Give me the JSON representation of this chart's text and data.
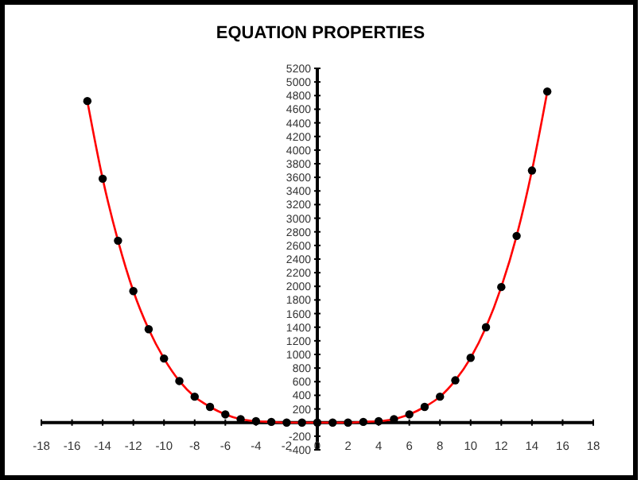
{
  "chart_data": {
    "type": "line",
    "title": "EQUATION PROPERTIES",
    "x": [
      -15,
      -14,
      -13,
      -12,
      -11,
      -10,
      -9,
      -8,
      -7,
      -6,
      -5,
      -4,
      -3,
      -2,
      -1,
      0,
      1,
      2,
      3,
      4,
      5,
      6,
      7,
      8,
      9,
      10,
      11,
      12,
      13,
      14,
      15
    ],
    "series": [
      {
        "color": "#ff0000",
        "values": [
          4720,
          3580,
          2670,
          1930,
          1370,
          940,
          610,
          380,
          230,
          120,
          50,
          20,
          10,
          0,
          0,
          0,
          0,
          0,
          10,
          20,
          50,
          120,
          230,
          380,
          620,
          950,
          1400,
          1990,
          2740,
          3700,
          4860
        ]
      }
    ],
    "xlim": [
      -18,
      18
    ],
    "xticks": [
      -18,
      -16,
      -14,
      -12,
      -10,
      -8,
      -6,
      -4,
      -2,
      0,
      2,
      4,
      6,
      8,
      10,
      12,
      14,
      16,
      18
    ],
    "ylim": [
      -400,
      5200
    ],
    "yticks": [
      -400,
      -200,
      {
        "value": 0,
        "label": null
      },
      200,
      400,
      600,
      800,
      1000,
      1200,
      1400,
      1600,
      1800,
      2000,
      2200,
      2400,
      2600,
      2800,
      3000,
      3200,
      3400,
      3600,
      3800,
      4000,
      4200,
      4400,
      4600,
      4800,
      5000,
      5200
    ],
    "grid": false,
    "marker": "circle",
    "line_style": "solid"
  }
}
